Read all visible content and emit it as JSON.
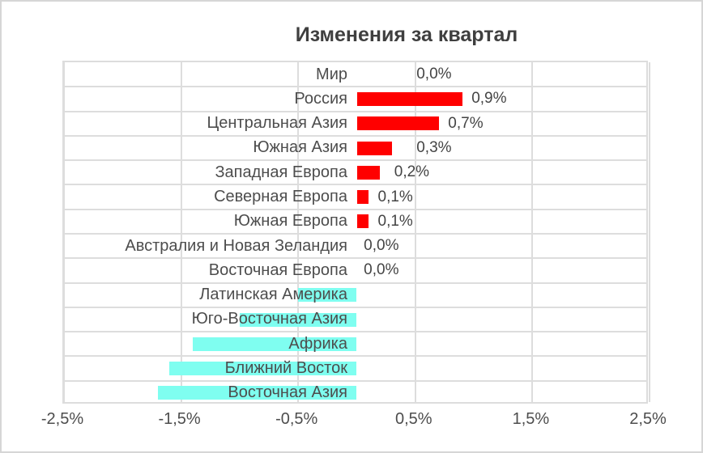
{
  "chart_data": {
    "type": "bar",
    "orientation": "horizontal",
    "title": "Изменения за квартал",
    "xlabel": "",
    "ylabel": "",
    "x_axis": {
      "min": -2.5,
      "max": 2.5,
      "tick_labels": [
        "-2,5%",
        "-1,5%",
        "-0,5%",
        "0,5%",
        "1,5%",
        "2,5%"
      ],
      "tick_values": [
        -2.5,
        -1.5,
        -0.5,
        0.5,
        1.5,
        2.5
      ],
      "unit": "%"
    },
    "grid": true,
    "legend": false,
    "colors": {
      "positive_bar": "#ff0000",
      "negative_bar": "#7ffef0",
      "gridline": "#dddddd",
      "label_text": "#4d4d4d",
      "title_text": "#3f3f3f"
    },
    "rows": [
      {
        "category": "Мир",
        "value": 0.0,
        "value_label": "0,0%",
        "value_label_x": 0.51
      },
      {
        "category": "Россия",
        "value": 0.9,
        "value_label": "0,9%",
        "value_label_x": 0.98
      },
      {
        "category": "Центральная Азия",
        "value": 0.7,
        "value_label": "0,7%",
        "value_label_x": 0.78
      },
      {
        "category": "Южная Азия",
        "value": 0.3,
        "value_label": "0,3%",
        "value_label_x": 0.51
      },
      {
        "category": "Западная Европа",
        "value": 0.2,
        "value_label": "0,2%",
        "value_label_x": 0.32
      },
      {
        "category": "Северная Европа",
        "value": 0.1,
        "value_label": "0,1%",
        "value_label_x": 0.18
      },
      {
        "category": "Южная Европа",
        "value": 0.1,
        "value_label": "0,1%",
        "value_label_x": 0.18
      },
      {
        "category": "Австралия и Новая Зеландия",
        "value": 0.0,
        "value_label": "0,0%",
        "value_label_x": 0.06
      },
      {
        "category": "Восточная Европа",
        "value": 0.0,
        "value_label": "0,0%",
        "value_label_x": 0.06
      },
      {
        "category": "Латинская Америка",
        "value": -0.5,
        "value_label": null
      },
      {
        "category": "Юго-Восточная Азия",
        "value": -1.0,
        "value_label": null
      },
      {
        "category": "Африка",
        "value": -1.4,
        "value_label": null
      },
      {
        "category": "Ближний Восток",
        "value": -1.6,
        "value_label": null
      },
      {
        "category": "Восточная Азия",
        "value": -1.7,
        "value_label": null
      }
    ]
  }
}
